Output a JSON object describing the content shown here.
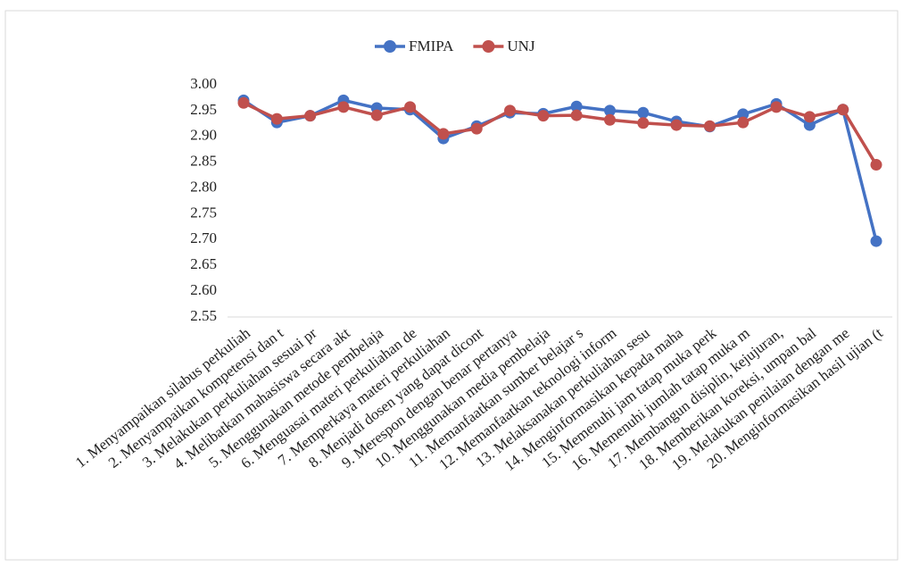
{
  "chart_data": {
    "type": "line",
    "categories": [
      "1. Menyampaikan silabus perkuliah",
      "2. Menyampaikan kompetensi dan t",
      "3. Melakukan perkuliahan sesuai pr",
      "4. Melibatkan mahasiswa secara akt",
      "5. Menggunakan metode pembelaja",
      "6. Menguasai materi perkuliahan de",
      "7. Memperkaya materi perkuliahan",
      "8. Menjadi dosen yang dapat dicont",
      "9. Merespon dengan benar pertanya",
      "10. Menggunakan media pembelaja",
      "11. Memanfaatkan sumber belajar s",
      "12. Memanfaatkan teknologi inform",
      "13. Melaksanakan perkuliahan sesu",
      "14. Menginformasikan kepada maha",
      "15. Memenuhi jam tatap muka perk",
      "16. Memenuhi jumlah tatap muka m",
      "17. Membangun disiplin, kejujuran,",
      "18. Memberikan koreksi, umpan bal",
      "19. Melakukan penilaian dengan me",
      "20. Menginformasikan hasil ujian (t"
    ],
    "series": [
      {
        "name": "FMIPA",
        "color": "#4472c4",
        "values": [
          2.97,
          2.927,
          2.94,
          2.97,
          2.955,
          2.952,
          2.896,
          2.92,
          2.946,
          2.944,
          2.958,
          2.95,
          2.946,
          2.929,
          2.919,
          2.943,
          2.963,
          2.922,
          2.952,
          2.697
        ]
      },
      {
        "name": "UNJ",
        "color": "#c0504d",
        "values": [
          2.965,
          2.934,
          2.94,
          2.957,
          2.941,
          2.957,
          2.905,
          2.915,
          2.95,
          2.94,
          2.941,
          2.932,
          2.926,
          2.922,
          2.92,
          2.927,
          2.957,
          2.938,
          2.952,
          2.845
        ]
      }
    ],
    "ylim": [
      2.55,
      3.0
    ],
    "yticks": [
      {
        "value": 2.55,
        "label": "2.55"
      },
      {
        "value": 2.6,
        "label": "2.60"
      },
      2.65,
      {
        "value": 2.7,
        "label": "2.70"
      },
      2.75,
      {
        "value": 2.8,
        "label": "2.80"
      },
      2.85,
      {
        "value": 2.9,
        "label": "2.90"
      },
      2.95,
      {
        "value": 3.0,
        "label": "3.00"
      }
    ],
    "grid": false
  }
}
